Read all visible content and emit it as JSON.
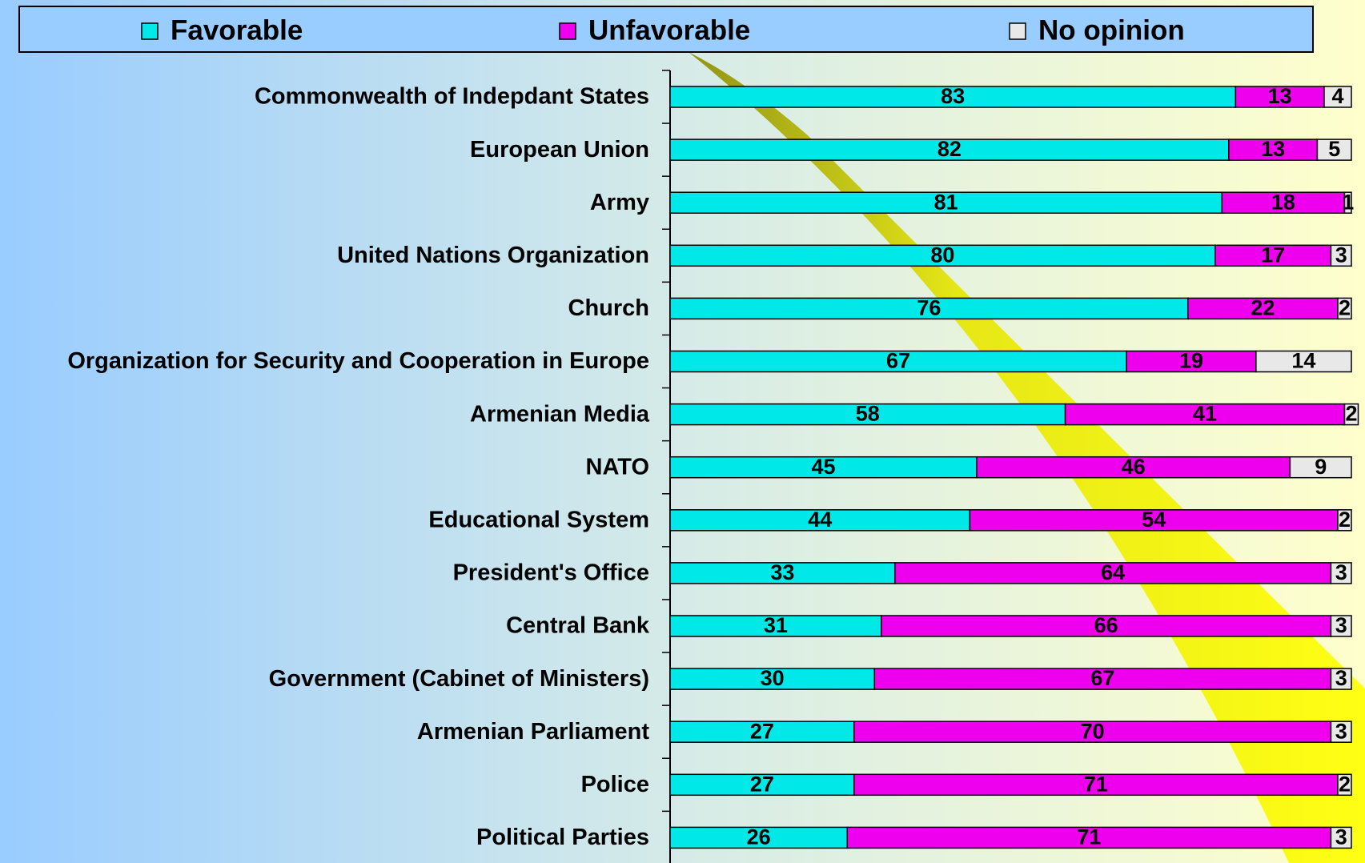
{
  "chart_data": {
    "type": "bar",
    "orientation": "horizontal",
    "stacked": true,
    "legend": "top",
    "categories": [
      "Commonwealth of Indepdant States",
      "European Union",
      "Army",
      "United Nations Organization",
      "Church",
      "Organization for Security and Cooperation in Europe",
      "Armenian Media",
      "NATO",
      "Educational System",
      "President's Office",
      "Central Bank",
      "Government (Cabinet of Ministers)",
      "Armenian Parliament",
      "Police",
      "Political Parties"
    ],
    "series": [
      {
        "name": "Favorable",
        "color": "#00e8e8",
        "values": [
          83,
          82,
          81,
          80,
          76,
          67,
          58,
          45,
          44,
          33,
          31,
          30,
          27,
          27,
          26
        ]
      },
      {
        "name": "Unfavorable",
        "color": "#ee00ee",
        "values": [
          13,
          13,
          18,
          17,
          22,
          19,
          41,
          46,
          54,
          64,
          66,
          67,
          70,
          71,
          71
        ]
      },
      {
        "name": "No opinion",
        "color": "#e8e8e8",
        "values": [
          4,
          5,
          1,
          3,
          2,
          14,
          2,
          9,
          2,
          3,
          3,
          3,
          3,
          2,
          3
        ]
      }
    ],
    "xlim": [
      0,
      100
    ]
  }
}
